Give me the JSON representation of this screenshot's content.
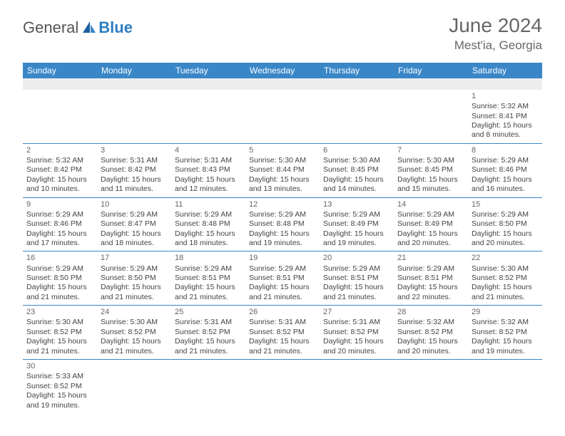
{
  "brand": {
    "general": "General",
    "blue": "Blue"
  },
  "title": "June 2024",
  "location": "Mest'ia, Georgia",
  "colors": {
    "header_bg": "#3a87c8",
    "header_fg": "#ffffff",
    "divider": "#3a87c8",
    "blank_bg": "#ededed",
    "text": "#444444",
    "brand_blue": "#2d7dc1",
    "brand_gray": "#555555"
  },
  "weekdays": [
    "Sunday",
    "Monday",
    "Tuesday",
    "Wednesday",
    "Thursday",
    "Friday",
    "Saturday"
  ],
  "weeks": [
    [
      null,
      null,
      null,
      null,
      null,
      null,
      {
        "d": "1",
        "sr": "5:32 AM",
        "ss": "8:41 PM",
        "dl": "15 hours and 8 minutes."
      }
    ],
    [
      {
        "d": "2",
        "sr": "5:32 AM",
        "ss": "8:42 PM",
        "dl": "15 hours and 10 minutes."
      },
      {
        "d": "3",
        "sr": "5:31 AM",
        "ss": "8:42 PM",
        "dl": "15 hours and 11 minutes."
      },
      {
        "d": "4",
        "sr": "5:31 AM",
        "ss": "8:43 PM",
        "dl": "15 hours and 12 minutes."
      },
      {
        "d": "5",
        "sr": "5:30 AM",
        "ss": "8:44 PM",
        "dl": "15 hours and 13 minutes."
      },
      {
        "d": "6",
        "sr": "5:30 AM",
        "ss": "8:45 PM",
        "dl": "15 hours and 14 minutes."
      },
      {
        "d": "7",
        "sr": "5:30 AM",
        "ss": "8:45 PM",
        "dl": "15 hours and 15 minutes."
      },
      {
        "d": "8",
        "sr": "5:29 AM",
        "ss": "8:46 PM",
        "dl": "15 hours and 16 minutes."
      }
    ],
    [
      {
        "d": "9",
        "sr": "5:29 AM",
        "ss": "8:46 PM",
        "dl": "15 hours and 17 minutes."
      },
      {
        "d": "10",
        "sr": "5:29 AM",
        "ss": "8:47 PM",
        "dl": "15 hours and 18 minutes."
      },
      {
        "d": "11",
        "sr": "5:29 AM",
        "ss": "8:48 PM",
        "dl": "15 hours and 18 minutes."
      },
      {
        "d": "12",
        "sr": "5:29 AM",
        "ss": "8:48 PM",
        "dl": "15 hours and 19 minutes."
      },
      {
        "d": "13",
        "sr": "5:29 AM",
        "ss": "8:49 PM",
        "dl": "15 hours and 19 minutes."
      },
      {
        "d": "14",
        "sr": "5:29 AM",
        "ss": "8:49 PM",
        "dl": "15 hours and 20 minutes."
      },
      {
        "d": "15",
        "sr": "5:29 AM",
        "ss": "8:50 PM",
        "dl": "15 hours and 20 minutes."
      }
    ],
    [
      {
        "d": "16",
        "sr": "5:29 AM",
        "ss": "8:50 PM",
        "dl": "15 hours and 21 minutes."
      },
      {
        "d": "17",
        "sr": "5:29 AM",
        "ss": "8:50 PM",
        "dl": "15 hours and 21 minutes."
      },
      {
        "d": "18",
        "sr": "5:29 AM",
        "ss": "8:51 PM",
        "dl": "15 hours and 21 minutes."
      },
      {
        "d": "19",
        "sr": "5:29 AM",
        "ss": "8:51 PM",
        "dl": "15 hours and 21 minutes."
      },
      {
        "d": "20",
        "sr": "5:29 AM",
        "ss": "8:51 PM",
        "dl": "15 hours and 21 minutes."
      },
      {
        "d": "21",
        "sr": "5:29 AM",
        "ss": "8:51 PM",
        "dl": "15 hours and 22 minutes."
      },
      {
        "d": "22",
        "sr": "5:30 AM",
        "ss": "8:52 PM",
        "dl": "15 hours and 21 minutes."
      }
    ],
    [
      {
        "d": "23",
        "sr": "5:30 AM",
        "ss": "8:52 PM",
        "dl": "15 hours and 21 minutes."
      },
      {
        "d": "24",
        "sr": "5:30 AM",
        "ss": "8:52 PM",
        "dl": "15 hours and 21 minutes."
      },
      {
        "d": "25",
        "sr": "5:31 AM",
        "ss": "8:52 PM",
        "dl": "15 hours and 21 minutes."
      },
      {
        "d": "26",
        "sr": "5:31 AM",
        "ss": "8:52 PM",
        "dl": "15 hours and 21 minutes."
      },
      {
        "d": "27",
        "sr": "5:31 AM",
        "ss": "8:52 PM",
        "dl": "15 hours and 20 minutes."
      },
      {
        "d": "28",
        "sr": "5:32 AM",
        "ss": "8:52 PM",
        "dl": "15 hours and 20 minutes."
      },
      {
        "d": "29",
        "sr": "5:32 AM",
        "ss": "8:52 PM",
        "dl": "15 hours and 19 minutes."
      }
    ],
    [
      {
        "d": "30",
        "sr": "5:33 AM",
        "ss": "8:52 PM",
        "dl": "15 hours and 19 minutes."
      },
      null,
      null,
      null,
      null,
      null,
      null
    ]
  ],
  "labels": {
    "sunrise": "Sunrise:",
    "sunset": "Sunset:",
    "daylight": "Daylight:"
  }
}
